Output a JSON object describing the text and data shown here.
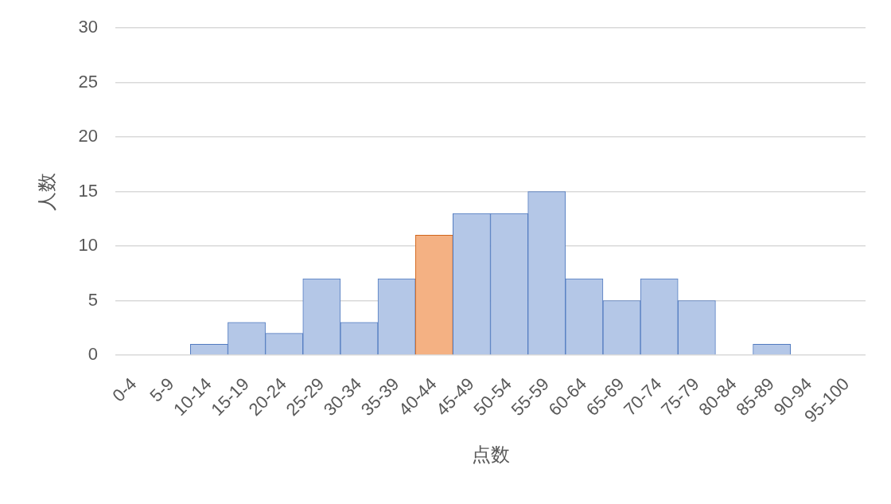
{
  "chart_data": {
    "type": "bar",
    "xlabel": "点数",
    "ylabel": "人数",
    "categories": [
      "0-4",
      "5-9",
      "10-14",
      "15-19",
      "20-24",
      "25-29",
      "30-34",
      "35-39",
      "40-44",
      "45-49",
      "50-54",
      "55-59",
      "60-64",
      "65-69",
      "70-74",
      "75-79",
      "80-84",
      "85-89",
      "90-94",
      "95-100"
    ],
    "values": [
      0,
      0,
      1,
      3,
      2,
      7,
      3,
      7,
      11,
      13,
      13,
      15,
      7,
      5,
      7,
      5,
      0,
      1,
      0,
      0
    ],
    "colors": [
      "#b4c7e7",
      "#b4c7e7",
      "#b4c7e7",
      "#b4c7e7",
      "#b4c7e7",
      "#b4c7e7",
      "#b4c7e7",
      "#b4c7e7",
      "#f4b183",
      "#b4c7e7",
      "#b4c7e7",
      "#b4c7e7",
      "#b4c7e7",
      "#b4c7e7",
      "#b4c7e7",
      "#b4c7e7",
      "#b4c7e7",
      "#b4c7e7",
      "#b4c7e7",
      "#b4c7e7"
    ],
    "ylim": [
      0,
      30
    ],
    "yticks": [
      0,
      5,
      10,
      15,
      20,
      25,
      30
    ],
    "grid": "y"
  }
}
